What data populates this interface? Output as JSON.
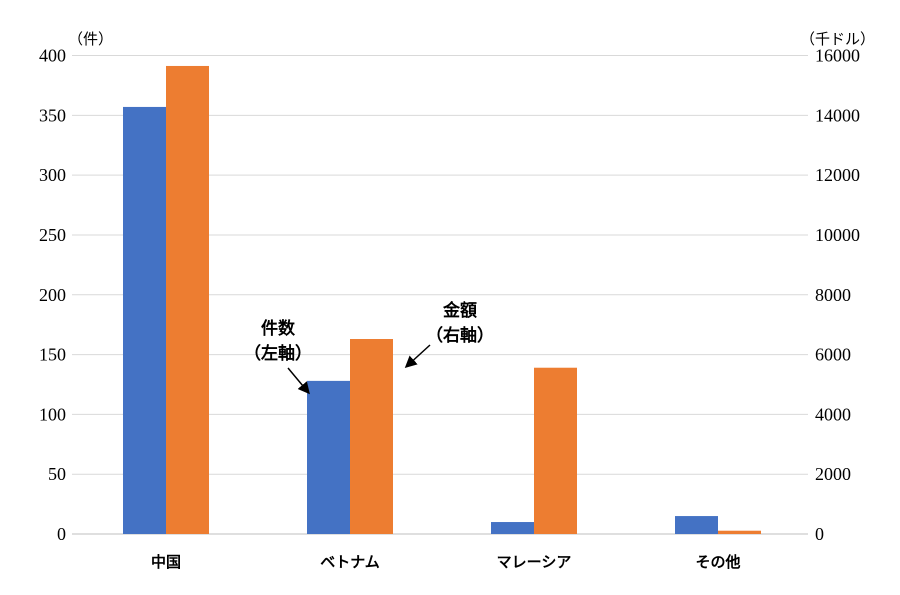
{
  "chart_data": {
    "type": "bar",
    "categories": [
      "中国",
      "ベトナム",
      "マレーシア",
      "その他"
    ],
    "series": [
      {
        "name": "件数（左軸）",
        "axis": "left",
        "color": "#4472C4",
        "values": [
          357,
          128,
          10,
          15
        ]
      },
      {
        "name": "金額（右軸）",
        "axis": "right",
        "color": "#ED7D31",
        "values": [
          15650,
          6520,
          5560,
          110
        ]
      }
    ],
    "left_axis": {
      "unit_label": "（件）",
      "ylim": [
        0,
        400
      ],
      "ticks": [
        "0",
        "50",
        "100",
        "150",
        "200",
        "250",
        "300",
        "350",
        "400"
      ]
    },
    "right_axis": {
      "unit_label": "（千ドル）",
      "ylim": [
        0,
        16000
      ],
      "ticks": [
        "0",
        "2000",
        "4000",
        "6000",
        "8000",
        "10000",
        "12000",
        "14000",
        "16000"
      ]
    },
    "annotations": [
      {
        "lines": [
          "件数",
          "（左軸）"
        ],
        "points_to": "ベトナム 件数"
      },
      {
        "lines": [
          "金額",
          "（右軸）"
        ],
        "points_to": "ベトナム 金額"
      }
    ],
    "grid": true
  }
}
